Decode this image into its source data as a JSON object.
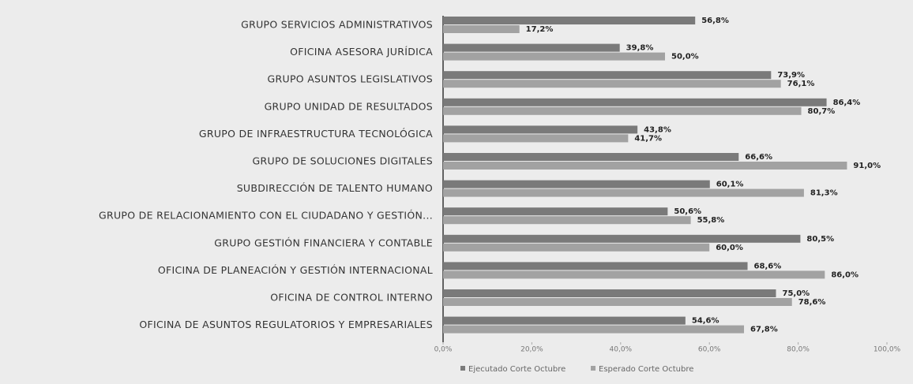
{
  "chart_data": {
    "type": "bar",
    "orientation": "horizontal",
    "categories": [
      "GRUPO SERVICIOS ADMINISTRATIVOS",
      "OFICINA ASESORA JURÍDICA",
      "GRUPO ASUNTOS LEGISLATIVOS",
      "GRUPO UNIDAD DE RESULTADOS",
      "GRUPO DE INFRAESTRUCTURA TECNOLÓGICA",
      "GRUPO DE SOLUCIONES DIGITALES",
      "SUBDIRECCIÓN DE TALENTO HUMANO",
      "GRUPO DE RELACIONAMIENTO CON EL CIUDADANO Y GESTIÓN...",
      "GRUPO GESTIÓN FINANCIERA Y CONTABLE",
      "OFICINA DE PLANEACIÓN Y GESTIÓN INTERNACIONAL",
      "OFICINA DE CONTROL INTERNO",
      "OFICINA DE ASUNTOS REGULATORIOS Y EMPRESARIALES"
    ],
    "series": [
      {
        "name": "Ejecutado Corte Octubre",
        "color": "#7a7a7a",
        "values": [
          56.8,
          39.8,
          73.9,
          86.4,
          43.8,
          66.6,
          60.1,
          50.6,
          80.5,
          68.6,
          75.0,
          54.6
        ],
        "value_labels": [
          "56,8%",
          "39,8%",
          "73,9%",
          "86,4%",
          "43,8%",
          "66,6%",
          "60,1%",
          "50,6%",
          "80,5%",
          "68,6%",
          "75,0%",
          "54,6%"
        ]
      },
      {
        "name": "Esperado Corte Octubre",
        "color": "#a2a2a2",
        "values": [
          17.2,
          50.0,
          76.1,
          80.7,
          41.7,
          91.0,
          81.3,
          55.8,
          60.0,
          86.0,
          78.6,
          67.8
        ],
        "value_labels": [
          "17,2%",
          "50,0%",
          "76,1%",
          "80,7%",
          "41,7%",
          "91,0%",
          "81,3%",
          "55,8%",
          "60,0%",
          "86,0%",
          "78,6%",
          "67,8%"
        ]
      }
    ],
    "xlim": [
      0,
      100
    ],
    "xticks": [
      {
        "value": 0,
        "label": "0,0%"
      },
      {
        "value": 20,
        "label": "20,0%"
      },
      {
        "value": 40,
        "label": "40,0%"
      },
      {
        "value": 60,
        "label": "60,0%"
      },
      {
        "value": 80,
        "label": "80,0%"
      },
      {
        "value": 100,
        "label": "100,0%"
      }
    ],
    "grid": false,
    "legend": "bottom"
  }
}
